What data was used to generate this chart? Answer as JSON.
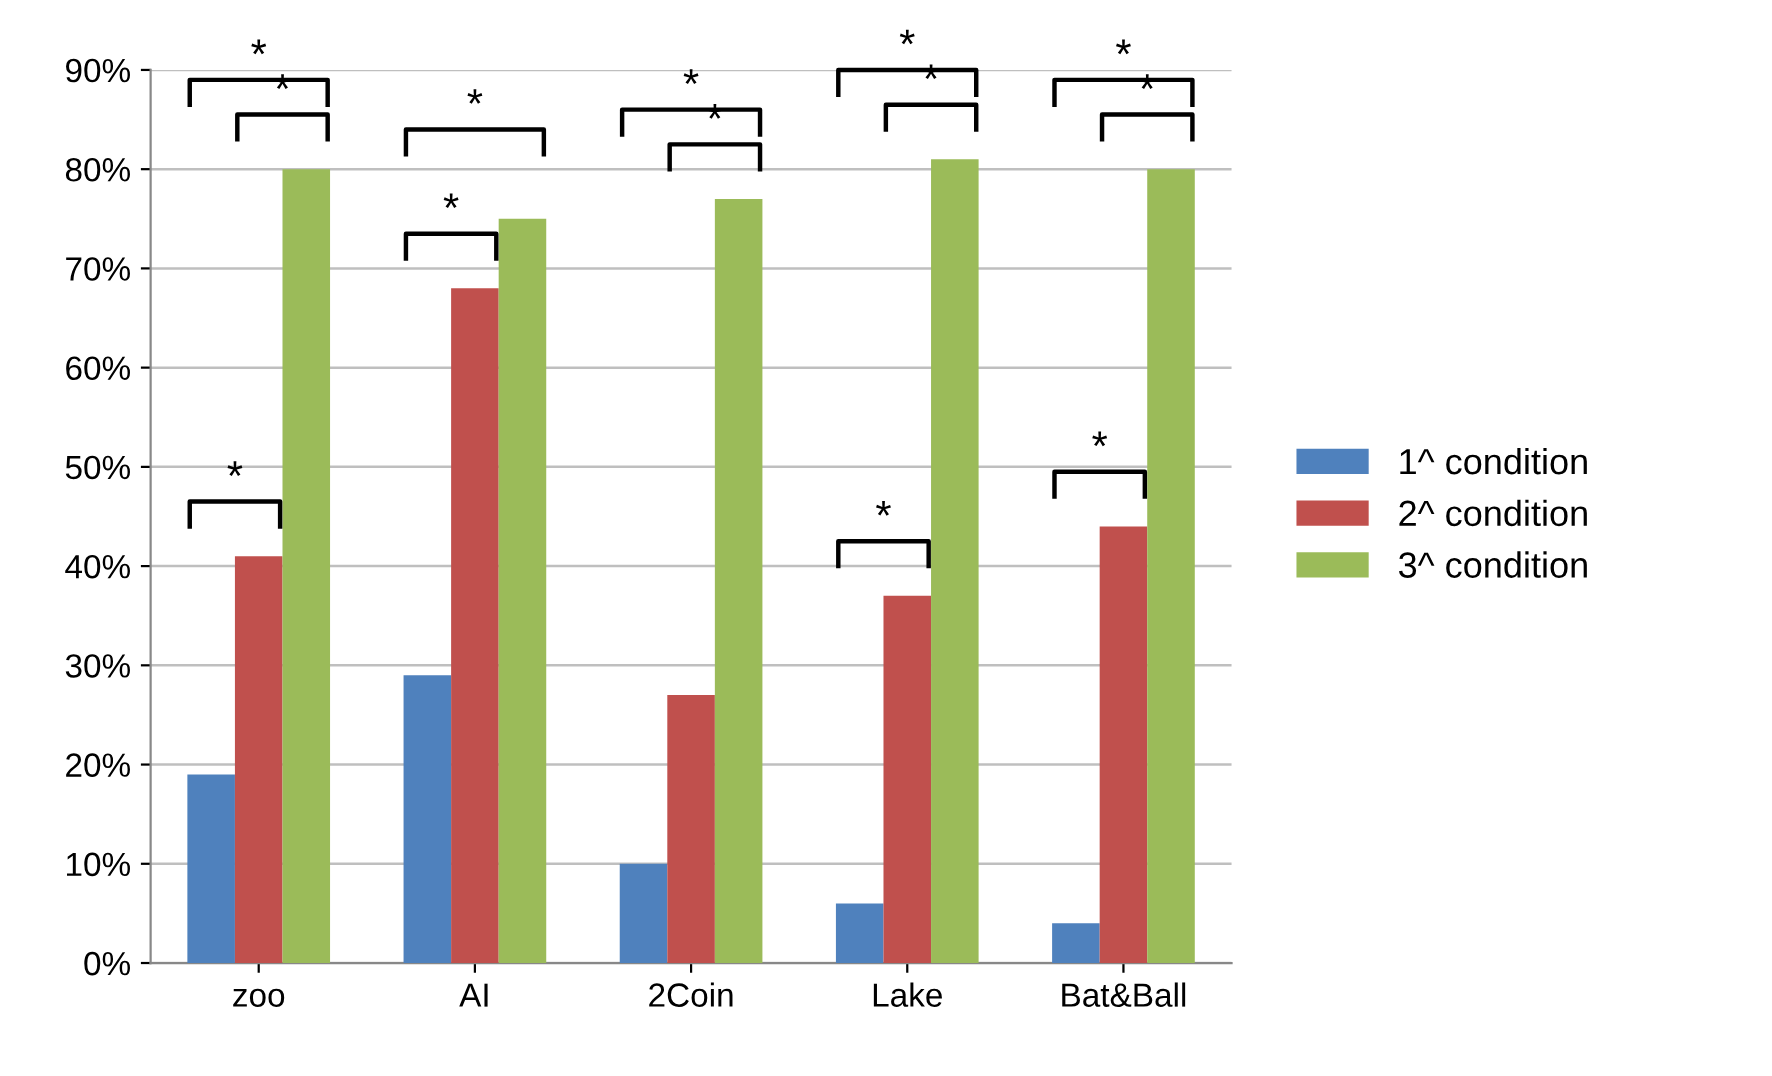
{
  "chart_data": {
    "type": "bar",
    "categories": [
      "zoo",
      "AI",
      "2Coin",
      "Lake",
      "Bat&Ball"
    ],
    "series": [
      {
        "name": "1^ condition",
        "color": "#4f81bd",
        "values": [
          19,
          29,
          10,
          6,
          4
        ]
      },
      {
        "name": "2^ condition",
        "color": "#c0504d",
        "values": [
          41,
          68,
          27,
          37,
          44
        ]
      },
      {
        "name": "3^ condition",
        "color": "#9bbb59",
        "values": [
          80,
          75,
          77,
          81,
          80
        ]
      }
    ],
    "ylim": [
      0,
      90
    ],
    "yticks": [
      {
        "value": 0,
        "label": "0%"
      },
      {
        "value": 10,
        "label": "10%"
      },
      {
        "value": 20,
        "label": "20%"
      },
      {
        "value": 30,
        "label": "30%"
      },
      {
        "value": 40,
        "label": "40%"
      },
      {
        "value": 50,
        "label": "50%"
      },
      {
        "value": 60,
        "label": "60%"
      },
      {
        "value": 70,
        "label": "70%"
      },
      {
        "value": 80,
        "label": "80%"
      },
      {
        "value": 90,
        "label": "90%"
      }
    ],
    "grid": "y",
    "legend": "right",
    "annotations": [
      "*",
      "*",
      "*",
      "*",
      "*",
      "*",
      "*",
      "*",
      "*",
      "*",
      "*",
      "*",
      "*"
    ]
  }
}
